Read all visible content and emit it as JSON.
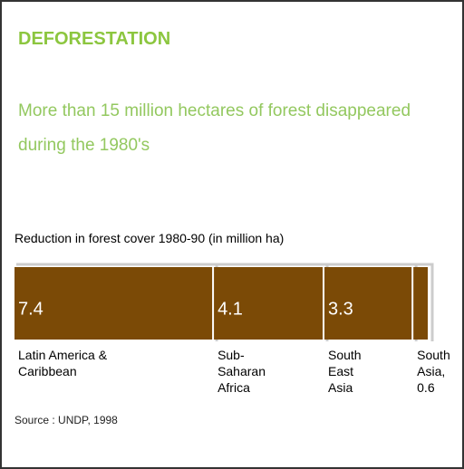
{
  "chart_data": {
    "type": "stacked-bar",
    "title": "DEFORESTATION",
    "subtitle": "More than 15 million hectares of forest disappeared during the 1980's",
    "caption": "Reduction in forest cover 1980-90 (in million ha)",
    "categories": [
      "Latin America & Caribbean",
      "Sub-Saharan Africa",
      "South East Asia",
      "South Asia, 0.6"
    ],
    "values": [
      7.4,
      4.1,
      3.3,
      0.6
    ],
    "color": "#7b4a06",
    "source": "Source : UNDP, 1998"
  }
}
